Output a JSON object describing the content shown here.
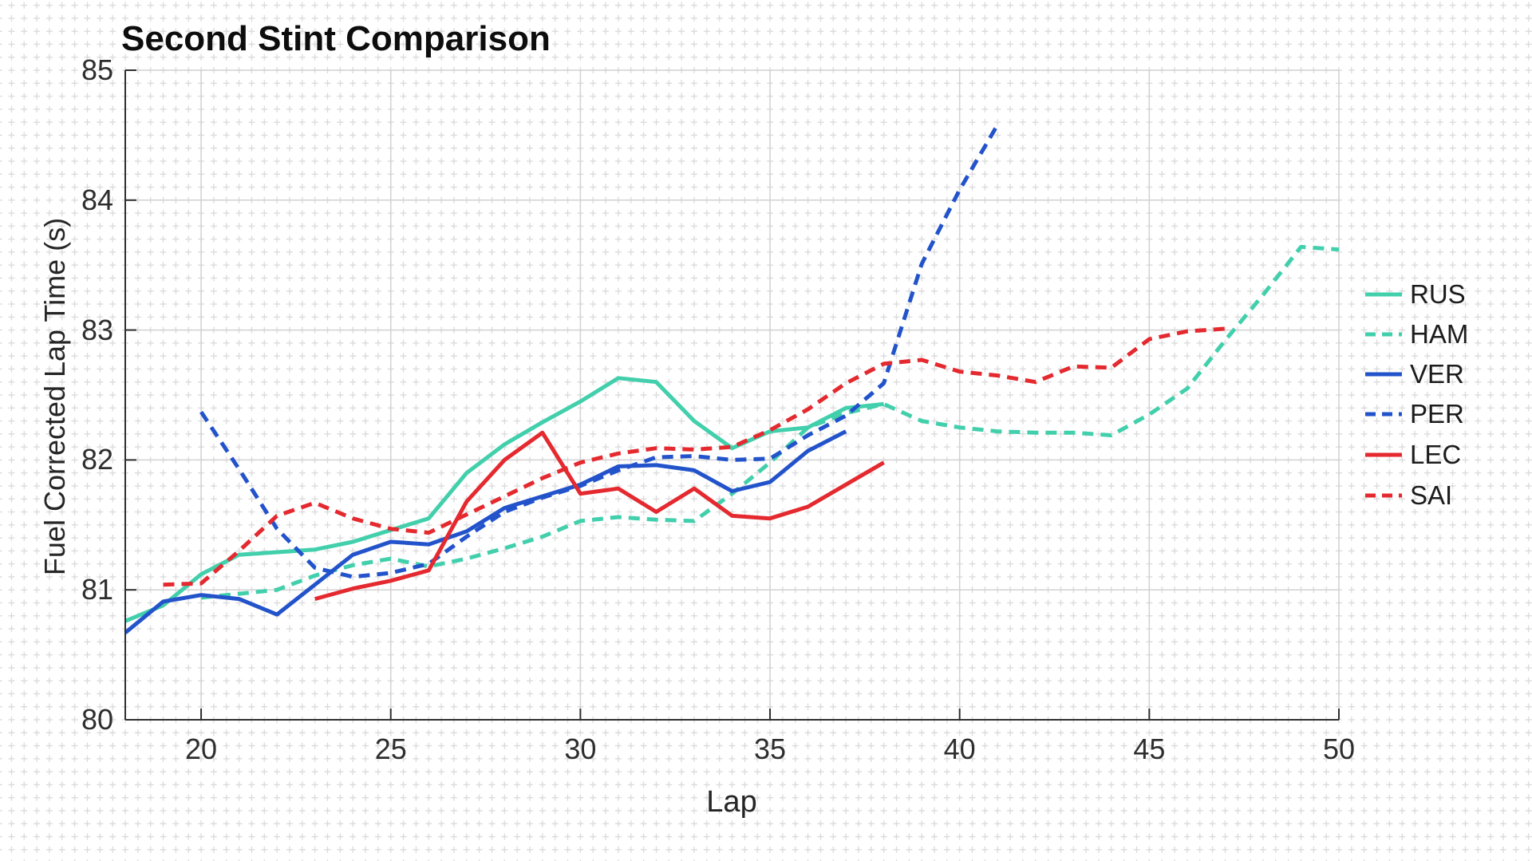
{
  "title": "Second Stint Comparison",
  "legend_position": "right",
  "palette": {
    "background": "#ffffff",
    "grid_minor": "#d9d9d9",
    "grid_major": "#d2d2d2",
    "axis": "#2f2f2f",
    "tick_label": "#2e2e2e",
    "title_color": "#0d0d0d",
    "teal": "#42cfac",
    "blue": "#2353cb",
    "red": "#e4292f"
  },
  "chart_data": {
    "type": "line",
    "title": "Second Stint Comparison",
    "xlabel": "Lap",
    "ylabel": "Fuel Corrected Lap Time (s)",
    "xlim": [
      18,
      50
    ],
    "ylim": [
      80,
      85
    ],
    "x_ticks": [
      20,
      25,
      30,
      35,
      40,
      45,
      50
    ],
    "y_ticks": [
      80,
      81,
      82,
      83,
      84,
      85
    ],
    "grid": "dashed-minor-crosses",
    "legend_position": "right-outside",
    "series": [
      {
        "name": "RUS",
        "color": "#42cfac",
        "dash": "solid",
        "start_lap": 18,
        "values": [
          80.76,
          80.88,
          81.12,
          81.27,
          81.29,
          81.31,
          81.37,
          81.46,
          81.55,
          81.9,
          82.12,
          82.29,
          82.45,
          82.63,
          82.6,
          82.3,
          82.09,
          82.22,
          82.25,
          82.4,
          82.43
        ]
      },
      {
        "name": "HAM",
        "color": "#42cfac",
        "dash": "dashed",
        "start_lap": 20,
        "values": [
          80.94,
          80.97,
          81.0,
          81.11,
          81.19,
          81.24,
          81.18,
          81.24,
          81.32,
          81.41,
          81.53,
          81.56,
          81.54,
          81.53,
          81.74,
          81.98,
          82.25,
          82.36,
          82.43,
          82.3,
          82.25,
          82.22,
          82.21,
          82.21,
          82.19,
          82.35,
          82.55,
          82.92,
          83.27,
          83.64,
          83.62
        ]
      },
      {
        "name": "VER",
        "color": "#2353cb",
        "dash": "solid",
        "start_lap": 18,
        "values": [
          80.67,
          80.91,
          80.96,
          80.93,
          80.81,
          81.04,
          81.27,
          81.37,
          81.35,
          81.45,
          81.63,
          81.72,
          81.81,
          81.95,
          81.96,
          81.92,
          81.76,
          81.83,
          82.07,
          82.22
        ]
      },
      {
        "name": "PER",
        "color": "#2353cb",
        "dash": "dashed",
        "start_lap": 20,
        "values": [
          82.37,
          81.93,
          81.47,
          81.17,
          81.1,
          81.13,
          81.2,
          81.41,
          81.6,
          81.71,
          81.8,
          81.92,
          82.02,
          82.03,
          82.0,
          82.01,
          82.19,
          82.34,
          82.59,
          83.51,
          84.08,
          84.58
        ]
      },
      {
        "name": "LEC",
        "color": "#e4292f",
        "dash": "solid",
        "start_lap": 23,
        "values": [
          80.93,
          81.01,
          81.07,
          81.15,
          81.68,
          82.0,
          82.21,
          81.74,
          81.78,
          81.6,
          81.78,
          81.57,
          81.55,
          81.64,
          81.81,
          81.98
        ]
      },
      {
        "name": "SAI",
        "color": "#e4292f",
        "dash": "dashed",
        "start_lap": 19,
        "values": [
          81.04,
          81.05,
          81.3,
          81.57,
          81.67,
          81.55,
          81.47,
          81.44,
          81.58,
          81.72,
          81.86,
          81.98,
          82.05,
          82.09,
          82.08,
          82.1,
          82.23,
          82.39,
          82.59,
          82.74,
          82.77,
          82.68,
          82.65,
          82.6,
          82.72,
          82.71,
          82.93,
          82.99,
          83.01
        ]
      }
    ]
  }
}
